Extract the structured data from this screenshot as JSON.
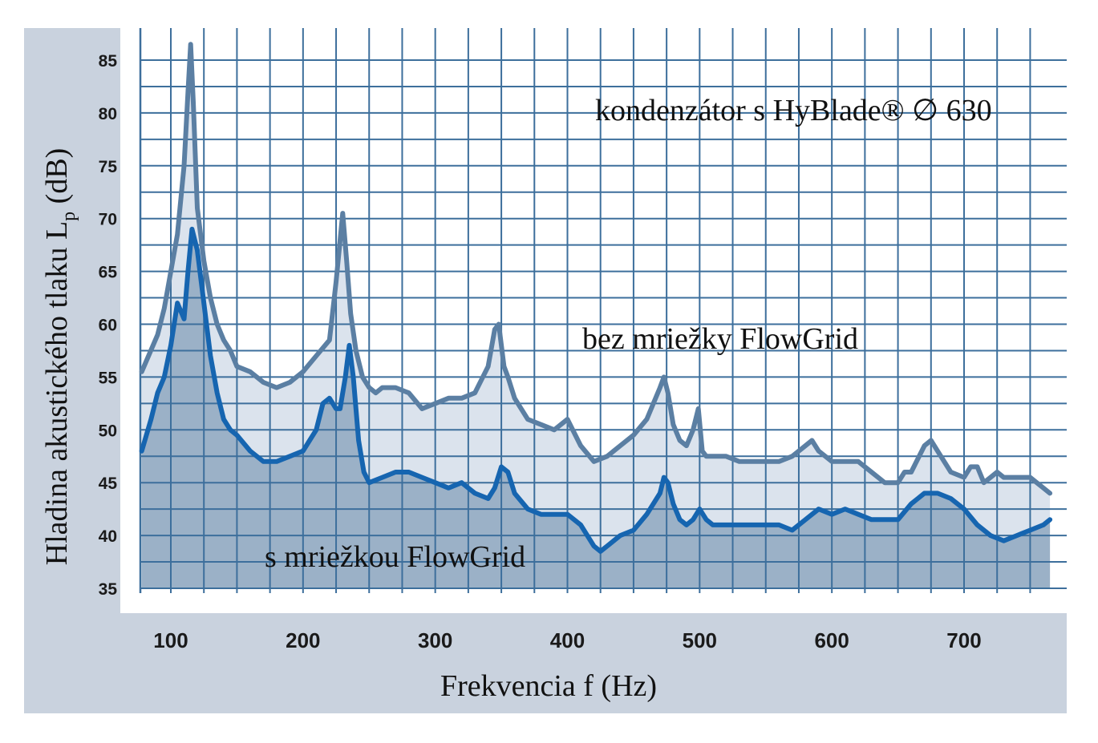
{
  "chart_data": {
    "type": "area",
    "title": "",
    "xlabel": "Frekvencia f (Hz)",
    "ylabel": "Hladina akustického tlaku L",
    "ylabel_sub": "p",
    "ylabel_unit": " (dB)",
    "xlim": [
      78,
      770
    ],
    "ylim": [
      35,
      87
    ],
    "xticks": [
      100,
      200,
      300,
      400,
      500,
      600,
      700
    ],
    "yticks": [
      35,
      40,
      45,
      50,
      55,
      60,
      65,
      70,
      75,
      80,
      85
    ],
    "grid": true,
    "annotations": [
      {
        "text": "kondenzátor s HyBlade® ∅ 630",
        "x": 500,
        "y": 80
      },
      {
        "text": "bez mriežky FlowGrid",
        "x": 500,
        "y": 58
      },
      {
        "text": "s mriežkou FlowGrid",
        "x": 300,
        "y": 38.5
      }
    ],
    "series": [
      {
        "key": "bez",
        "x": [
          78,
          90,
          95,
          100,
          105,
          110,
          113,
          115,
          117,
          120,
          125,
          130,
          135,
          140,
          145,
          150,
          160,
          170,
          180,
          190,
          200,
          210,
          220,
          225,
          230,
          233,
          236,
          240,
          245,
          250,
          255,
          260,
          270,
          280,
          290,
          300,
          310,
          320,
          330,
          340,
          345,
          348,
          352,
          355,
          360,
          370,
          380,
          390,
          400,
          410,
          420,
          430,
          440,
          450,
          460,
          470,
          473,
          476,
          480,
          485,
          490,
          495,
          499,
          502,
          505,
          510,
          520,
          530,
          540,
          550,
          560,
          570,
          580,
          585,
          590,
          600,
          610,
          620,
          630,
          640,
          650,
          655,
          660,
          670,
          675,
          680,
          690,
          700,
          705,
          710,
          715,
          720,
          725,
          730,
          740,
          750,
          760,
          765
        ],
        "y": [
          55.5,
          59,
          61.5,
          65,
          68.5,
          75,
          82,
          86.5,
          81,
          71,
          66,
          62.5,
          60,
          58.5,
          57.5,
          56,
          55.5,
          54.5,
          54,
          54.5,
          55.5,
          57,
          58.5,
          64,
          70.5,
          66,
          61,
          57.5,
          55,
          54,
          53.5,
          54,
          54,
          53.5,
          52,
          52.5,
          53,
          53,
          53.5,
          56,
          59.5,
          60,
          56,
          55,
          53,
          51,
          50.5,
          50,
          51,
          48.5,
          47,
          47.5,
          48.5,
          49.5,
          51,
          54,
          55,
          53.5,
          50.5,
          49,
          48.5,
          50,
          52,
          48,
          47.5,
          47.5,
          47.5,
          47,
          47,
          47,
          47,
          47.5,
          48.5,
          49,
          48,
          47,
          47,
          47,
          46,
          45,
          45,
          46,
          46,
          48.5,
          49,
          48,
          46,
          45.5,
          46.5,
          46.5,
          45,
          45.5,
          46,
          45.5,
          45.5,
          45.5,
          44.5,
          44
        ]
      },
      {
        "key": "s",
        "x": [
          78,
          85,
          90,
          95,
          100,
          105,
          110,
          113,
          116,
          120,
          125,
          130,
          135,
          140,
          145,
          150,
          160,
          170,
          180,
          190,
          200,
          210,
          215,
          220,
          225,
          228,
          232,
          235,
          238,
          242,
          246,
          250,
          260,
          270,
          280,
          290,
          300,
          310,
          320,
          330,
          340,
          345,
          350,
          355,
          360,
          370,
          380,
          390,
          400,
          410,
          420,
          425,
          430,
          440,
          450,
          460,
          470,
          473,
          476,
          480,
          485,
          490,
          495,
          500,
          505,
          510,
          520,
          530,
          540,
          550,
          560,
          570,
          580,
          590,
          600,
          610,
          620,
          630,
          640,
          650,
          660,
          670,
          680,
          690,
          700,
          710,
          720,
          730,
          740,
          750,
          760,
          765
        ],
        "y": [
          48,
          51,
          53.5,
          55,
          58,
          62,
          60.5,
          65,
          69,
          67,
          62,
          57,
          53.5,
          51,
          50,
          49.5,
          48,
          47,
          47,
          47.5,
          48,
          50,
          52.5,
          53,
          52,
          52,
          55,
          58,
          55,
          49,
          46,
          45,
          45.5,
          46,
          46,
          45.5,
          45,
          44.5,
          45,
          44,
          43.5,
          44.5,
          46.5,
          46,
          44,
          42.5,
          42,
          42,
          42,
          41,
          39,
          38.5,
          39,
          40,
          40.5,
          42,
          44,
          45.5,
          45,
          43,
          41.5,
          41,
          41.5,
          42.5,
          41.5,
          41,
          41,
          41,
          41,
          41,
          41,
          40.5,
          41.5,
          42.5,
          42,
          42.5,
          42,
          41.5,
          41.5,
          41.5,
          43,
          44,
          44,
          43.5,
          42.5,
          41,
          40,
          39.5,
          40,
          40.5,
          41,
          41.5
        ]
      }
    ]
  },
  "colors": {
    "panel_bg": "#c9d2de",
    "plot_bg": "#ffffff",
    "grid": "#3d6f9c",
    "bez_line": "#5b7fa3",
    "bez_fill": "#dbe3ed",
    "s_line": "#1665b0",
    "s_fill": "#9bb1c7"
  }
}
